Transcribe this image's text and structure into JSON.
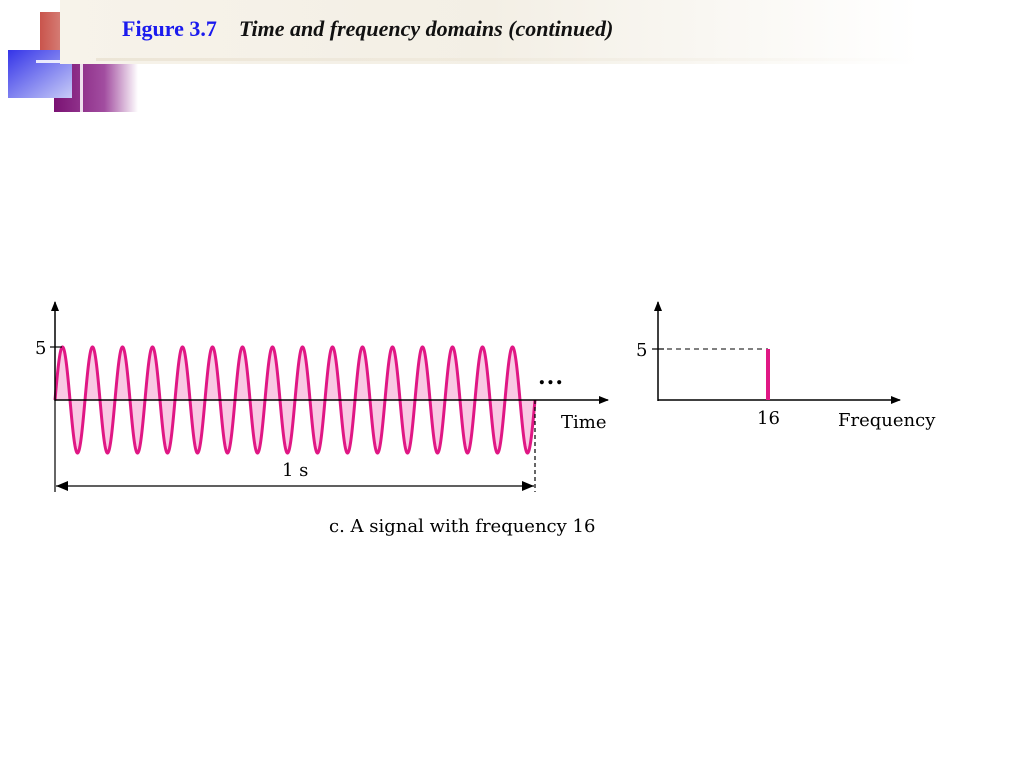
{
  "header": {
    "figure_label": "Figure 3.7",
    "figure_title": "Time and frequency domains (continued)"
  },
  "time_plot": {
    "amplitude_label": "5",
    "x_axis_label": "Time",
    "duration_label": "1 s",
    "continuation": "...",
    "cycles": 16,
    "amplitude": 5,
    "signal_color": "#e01784",
    "fill_color": "#f9c8e3"
  },
  "freq_plot": {
    "amplitude_label": "5",
    "x_axis_label": "Frequency",
    "tick_label": "16",
    "frequency": 16,
    "amplitude": 5,
    "spike_color": "#e01784"
  },
  "caption": "c. A signal with frequency 16",
  "colors": {
    "accent_blue": "#1a1aee",
    "deco_red": "#c0504d",
    "deco_purple": "#7a1a7a",
    "deco_blue": "#4a4aee"
  }
}
